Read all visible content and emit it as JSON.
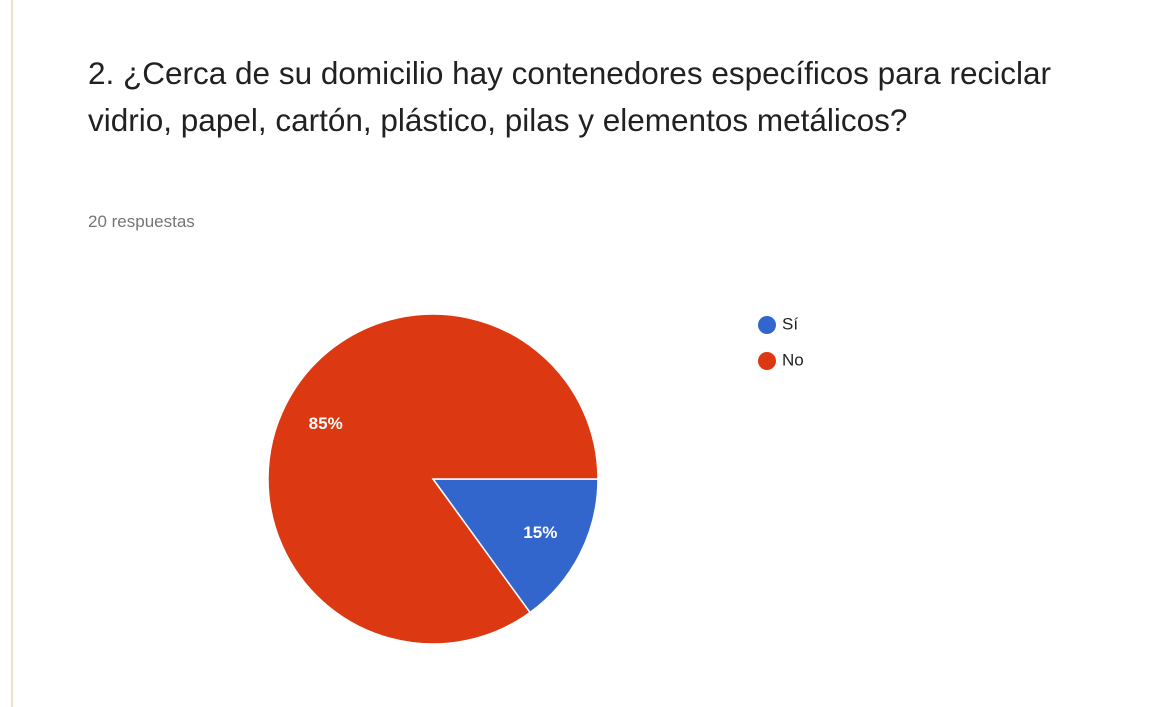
{
  "chart_data": {
    "type": "pie",
    "title": "2. ¿Cerca de su domicilio hay contenedores específicos para reciclar vidrio, papel, cartón, plástico, pilas y elementos metálicos?",
    "subtitle": "20 respuestas",
    "categories": [
      "Sí",
      "No"
    ],
    "values": [
      15,
      85
    ],
    "value_labels": [
      "15%",
      "85%"
    ],
    "colors": [
      "#3366cc",
      "#dc3912"
    ],
    "legend": "right"
  }
}
